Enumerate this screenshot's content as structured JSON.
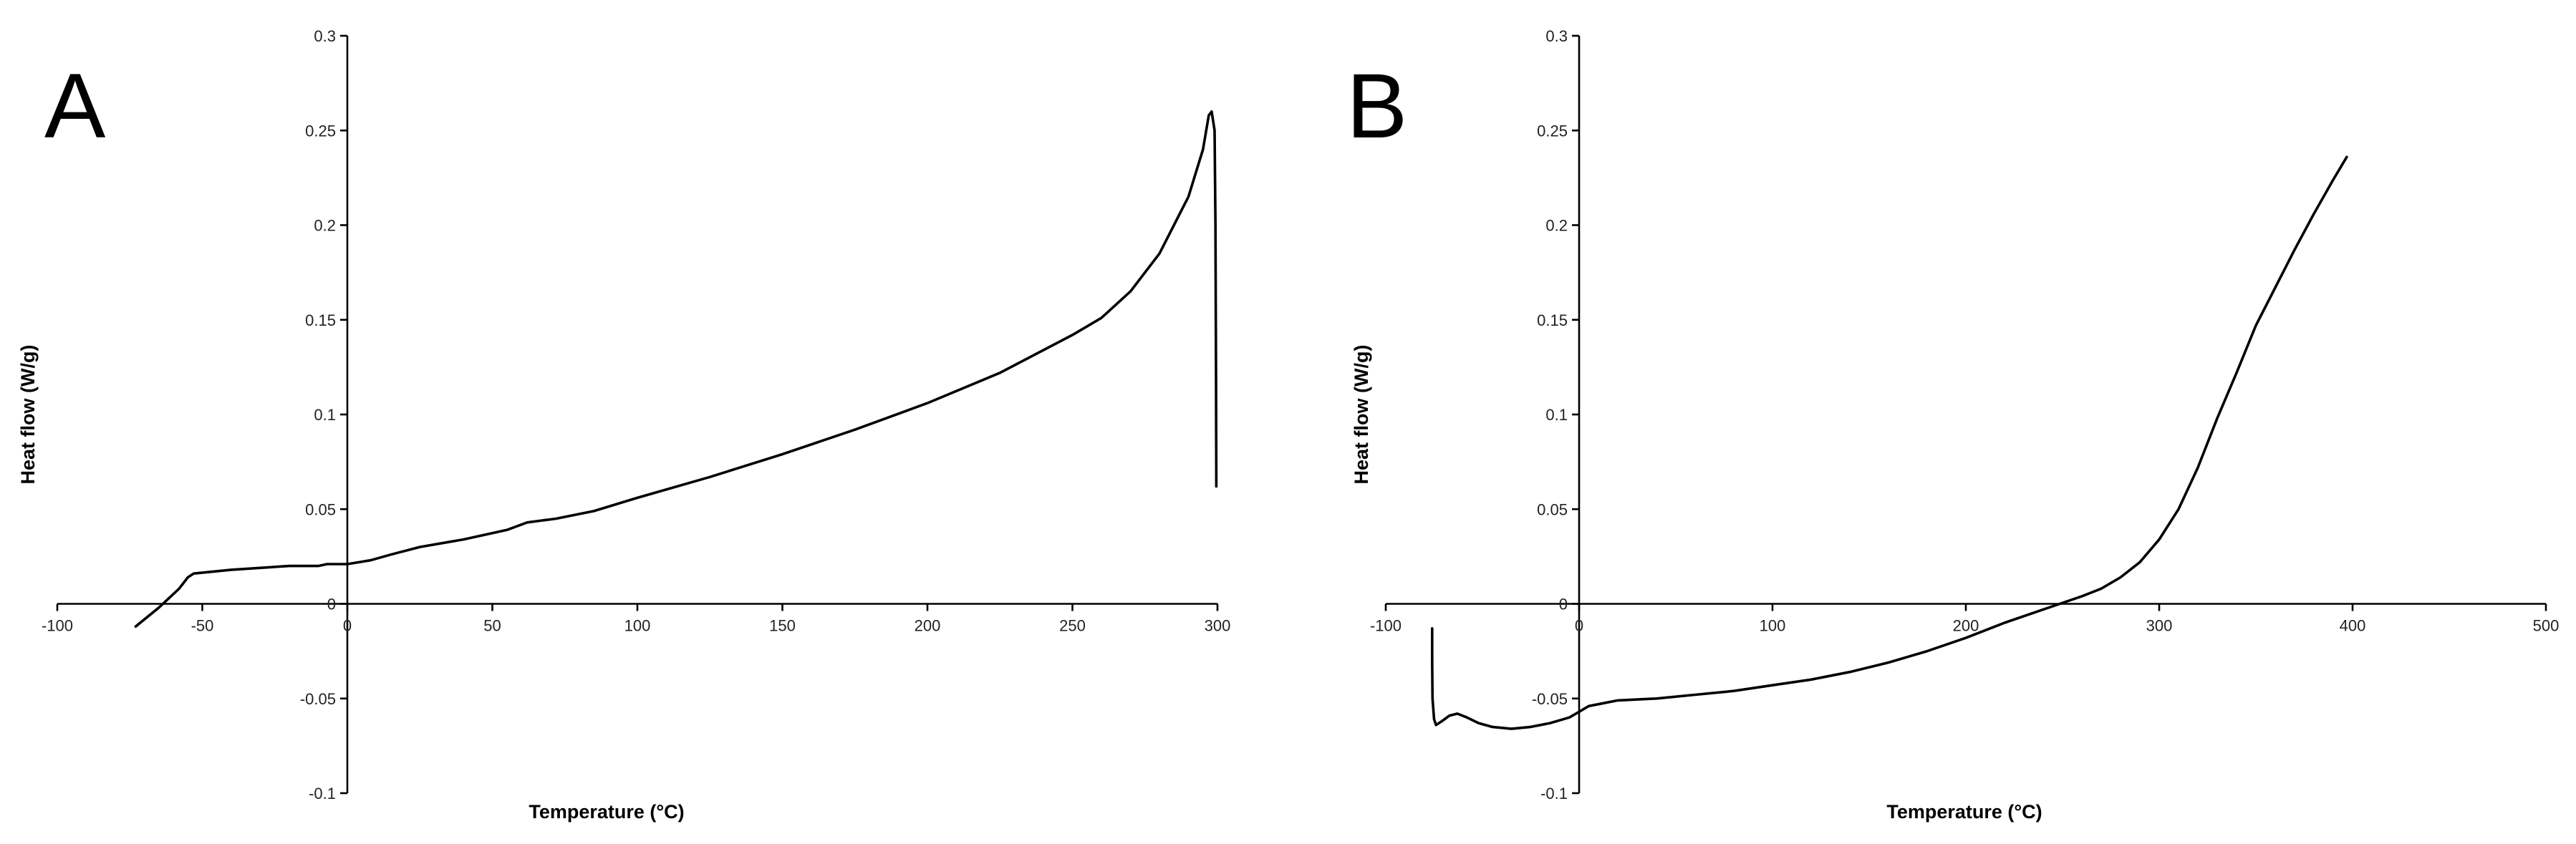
{
  "chart_data": [
    {
      "type": "line",
      "panel_label": "A",
      "xlabel": "Temperature (°C)",
      "ylabel": "Heat flow (W/g)",
      "xlim": [
        -100,
        300
      ],
      "ylim": [
        -0.1,
        0.3
      ],
      "x_ticks": [
        -100,
        -50,
        0,
        50,
        100,
        150,
        200,
        250,
        300
      ],
      "y_ticks": [
        -0.1,
        -0.05,
        0,
        0.05,
        0.1,
        0.15,
        0.2,
        0.25,
        0.3
      ],
      "x_tick_labels": [
        "-100",
        "-50",
        "0",
        "50",
        "100",
        "150",
        "200",
        "250",
        "300"
      ],
      "y_tick_labels": [
        "-0.1",
        "-0.05",
        "0",
        "0.05",
        "0.1",
        "0.15",
        "0.2",
        "0.25",
        "0.3"
      ],
      "grid": false,
      "series": [
        {
          "points": [
            [
              -73,
              -0.012
            ],
            [
              -65,
              -0.002
            ],
            [
              -58,
              0.008
            ],
            [
              -55,
              0.014
            ],
            [
              -53,
              0.016
            ],
            [
              -40,
              0.018
            ],
            [
              -20,
              0.02
            ],
            [
              -10,
              0.02
            ],
            [
              -7,
              0.021
            ],
            [
              0,
              0.021
            ],
            [
              8,
              0.023
            ],
            [
              15,
              0.026
            ],
            [
              25,
              0.03
            ],
            [
              40,
              0.034
            ],
            [
              55,
              0.039
            ],
            [
              62,
              0.043
            ],
            [
              67,
              0.044
            ],
            [
              72,
              0.045
            ],
            [
              85,
              0.049
            ],
            [
              100,
              0.056
            ],
            [
              125,
              0.067
            ],
            [
              150,
              0.079
            ],
            [
              175,
              0.092
            ],
            [
              200,
              0.106
            ],
            [
              225,
              0.122
            ],
            [
              250,
              0.142
            ],
            [
              260,
              0.151
            ],
            [
              270,
              0.165
            ],
            [
              280,
              0.185
            ],
            [
              290,
              0.215
            ],
            [
              295,
              0.24
            ],
            [
              297,
              0.258
            ],
            [
              298,
              0.26
            ],
            [
              299,
              0.25
            ],
            [
              299.3,
              0.2
            ],
            [
              299.5,
              0.12
            ],
            [
              299.6,
              0.062
            ]
          ]
        }
      ]
    },
    {
      "type": "line",
      "panel_label": "B",
      "xlabel": "Temperature (°C)",
      "ylabel": "Heat flow (W/g)",
      "xlim": [
        -100,
        500
      ],
      "ylim": [
        -0.1,
        0.3
      ],
      "x_ticks": [
        -100,
        0,
        100,
        200,
        300,
        400,
        500
      ],
      "y_ticks": [
        -0.1,
        -0.05,
        0,
        0.05,
        0.1,
        0.15,
        0.2,
        0.25,
        0.3
      ],
      "x_tick_labels": [
        "-100",
        "0",
        "100",
        "200",
        "300",
        "400",
        "500"
      ],
      "y_tick_labels": [
        "-0.1",
        "-0.05",
        "0",
        "0.05",
        "0.1",
        "0.15",
        "0.2",
        "0.25",
        "0.3"
      ],
      "grid": false,
      "series": [
        {
          "points": [
            [
              -76,
              -0.013
            ],
            [
              -76,
              -0.03
            ],
            [
              -75.8,
              -0.05
            ],
            [
              -75,
              -0.061
            ],
            [
              -74,
              -0.064
            ],
            [
              -71,
              -0.062
            ],
            [
              -67,
              -0.059
            ],
            [
              -63,
              -0.058
            ],
            [
              -58,
              -0.06
            ],
            [
              -52,
              -0.063
            ],
            [
              -45,
              -0.065
            ],
            [
              -35,
              -0.066
            ],
            [
              -25,
              -0.065
            ],
            [
              -15,
              -0.063
            ],
            [
              -5,
              -0.06
            ],
            [
              0,
              -0.057
            ],
            [
              5,
              -0.054
            ],
            [
              10,
              -0.053
            ],
            [
              20,
              -0.051
            ],
            [
              40,
              -0.05
            ],
            [
              60,
              -0.048
            ],
            [
              80,
              -0.046
            ],
            [
              100,
              -0.043
            ],
            [
              120,
              -0.04
            ],
            [
              140,
              -0.036
            ],
            [
              160,
              -0.031
            ],
            [
              180,
              -0.025
            ],
            [
              200,
              -0.018
            ],
            [
              220,
              -0.01
            ],
            [
              240,
              -0.003
            ],
            [
              260,
              0.004
            ],
            [
              270,
              0.008
            ],
            [
              280,
              0.014
            ],
            [
              290,
              0.022
            ],
            [
              300,
              0.034
            ],
            [
              310,
              0.05
            ],
            [
              320,
              0.072
            ],
            [
              330,
              0.098
            ],
            [
              340,
              0.122
            ],
            [
              350,
              0.147
            ],
            [
              360,
              0.167
            ],
            [
              370,
              0.187
            ],
            [
              380,
              0.206
            ],
            [
              390,
              0.224
            ],
            [
              397,
              0.236
            ]
          ]
        }
      ]
    }
  ]
}
